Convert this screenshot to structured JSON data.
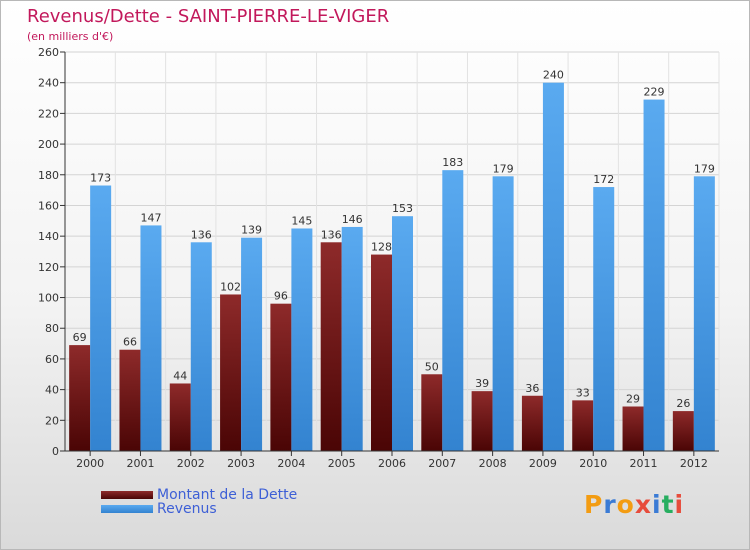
{
  "chart_data": {
    "type": "bar",
    "title": "Revenus/Dette - SAINT-PIERRE-LE-VIGER",
    "subtitle": "(en milliers d'€)",
    "categories": [
      "2000",
      "2001",
      "2002",
      "2003",
      "2004",
      "2005",
      "2006",
      "2007",
      "2008",
      "2009",
      "2010",
      "2011",
      "2012"
    ],
    "series": [
      {
        "name": "Montant de la Dette",
        "color": "#7b1414",
        "values": [
          69,
          66,
          44,
          102,
          96,
          136,
          128,
          50,
          39,
          36,
          33,
          29,
          26
        ]
      },
      {
        "name": "Revenus",
        "color": "#4f9fe6",
        "values": [
          173,
          147,
          136,
          139,
          145,
          146,
          153,
          183,
          179,
          240,
          172,
          229,
          179
        ]
      }
    ],
    "ylim": [
      0,
      260
    ],
    "ytick_step": 20,
    "grid": true,
    "legend_position": "bottom-left"
  },
  "logo": {
    "letters": [
      {
        "ch": "P",
        "color": "#f39c12"
      },
      {
        "ch": "r",
        "color": "#3a7bd5"
      },
      {
        "ch": "o",
        "color": "#f39c12"
      },
      {
        "ch": "x",
        "color": "#e74c3c"
      },
      {
        "ch": "i",
        "color": "#3a7bd5"
      },
      {
        "ch": "t",
        "color": "#27ae60"
      },
      {
        "ch": "i",
        "color": "#e74c3c"
      }
    ]
  }
}
